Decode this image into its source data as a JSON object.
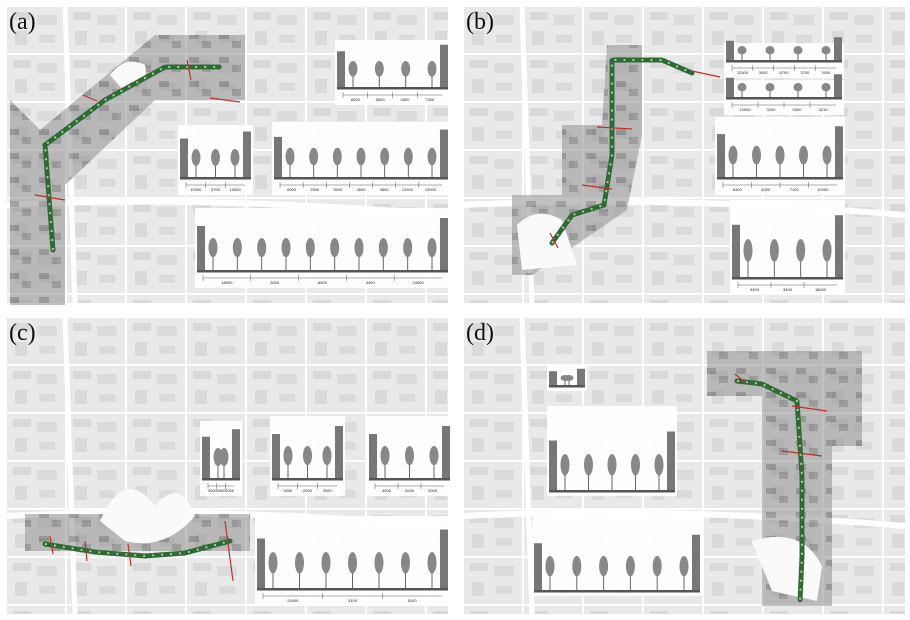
{
  "panels": [
    {
      "label": "(a)",
      "sections": [
        {
          "dims": [
            "6000",
            "6500",
            "2800",
            "7300"
          ]
        },
        {
          "dims": [
            "10000",
            "3700",
            "10000"
          ]
        },
        {
          "dims": [
            "6000",
            "2500",
            "3000",
            "2600",
            "3800",
            "12000",
            "12000"
          ]
        },
        {
          "dims": [
            "18000",
            "3000",
            "6500",
            "3400",
            "24000"
          ]
        }
      ]
    },
    {
      "label": "(b)",
      "sections": [
        {
          "dims": [
            "12000",
            "3000",
            "6700",
            "3700",
            "7600"
          ]
        },
        {
          "dims": [
            "10000",
            "3200",
            "6300",
            "3210"
          ]
        },
        {
          "dims": [
            "6400",
            "6200",
            "7100",
            "10000"
          ]
        },
        {
          "dims": [
            "9400",
            "3400",
            "18000"
          ]
        }
      ]
    },
    {
      "label": "(c)",
      "sections": [
        {
          "dims": [
            "3000",
            "3000",
            "2000"
          ]
        },
        {
          "dims": [
            "3000",
            "2000",
            "2000"
          ]
        },
        {
          "dims": [
            "3000",
            "2000",
            "2000"
          ]
        },
        {
          "dims": [
            "24000",
            "3100",
            "5100"
          ]
        }
      ]
    },
    {
      "label": "(d)",
      "sections": [
        {
          "dims": []
        },
        {
          "dims": []
        },
        {
          "dims": []
        }
      ]
    }
  ]
}
